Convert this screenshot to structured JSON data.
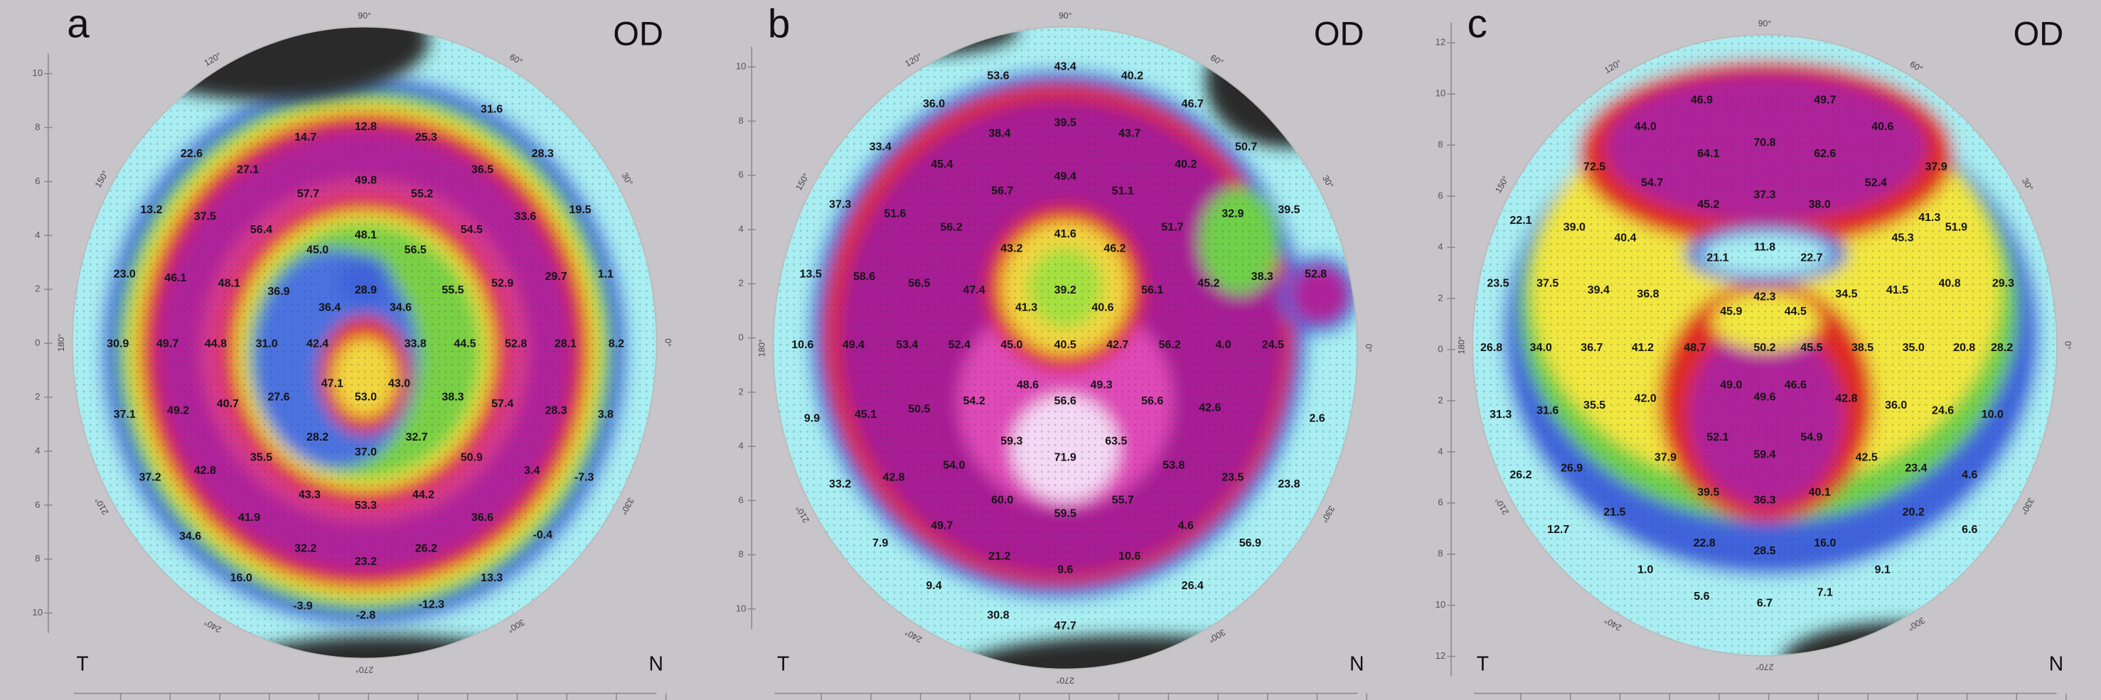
{
  "panels": [
    {
      "label": "a",
      "eye": "OD",
      "temporal": "T",
      "nasal": "N",
      "axis_labels": [
        "10",
        "8",
        "6",
        "4",
        "2",
        "0",
        "2",
        "4",
        "6",
        "8",
        "10"
      ],
      "angle_labels": [
        "90°",
        "120°",
        "60°",
        "150°",
        "30°",
        "180°",
        "0°",
        "210°",
        "330°",
        "240°",
        "300°",
        "270°"
      ],
      "values": [
        "14.7",
        "12.8",
        "25.3",
        "31.6",
        "22.6",
        "27.1",
        "36.5",
        "28.3",
        "13.2",
        "37.5",
        "57.7",
        "49.8",
        "55.2",
        "33.6",
        "19.5",
        "56.4",
        "48.1",
        "56.5",
        "54.5",
        "45.0",
        "23.0",
        "46.1",
        "48.1",
        "36.9",
        "28.9",
        "55.5",
        "52.9",
        "29.7",
        "1.1",
        "36.4",
        "34.6",
        "30.9",
        "49.7",
        "44.8",
        "31.0",
        "42.4",
        "33.8",
        "44.5",
        "52.8",
        "28.1",
        "8.2",
        "47.1",
        "43.0",
        "27.6",
        "40.7",
        "53.0",
        "38.3",
        "57.4",
        "28.3",
        "3.8",
        "37.1",
        "49.2",
        "28.2",
        "32.7",
        "50.9",
        "35.5",
        "37.0",
        "3.4",
        "-7.3",
        "37.2",
        "42.8",
        "43.3",
        "44.2",
        "53.3",
        "41.9",
        "36.6",
        "34.6",
        "-0.4",
        "32.2",
        "26.2",
        "23.2",
        "13.3",
        "16.0",
        "-3.9",
        "-2.8",
        "-12.3"
      ]
    },
    {
      "label": "b",
      "eye": "OD",
      "temporal": "T",
      "nasal": "N",
      "axis_labels": [
        "10",
        "8",
        "6",
        "4",
        "2",
        "0",
        "2",
        "4",
        "6",
        "8",
        "10"
      ],
      "angle_labels": [
        "90°",
        "120°",
        "60°",
        "150°",
        "30°",
        "180°",
        "0°",
        "210°",
        "330°",
        "240°",
        "300°",
        "270°"
      ],
      "values": [
        "53.6",
        "43.4",
        "40.2",
        "36.0",
        "46.7",
        "33.4",
        "38.4",
        "39.5",
        "43.7",
        "50.7",
        "45.4",
        "56.7",
        "49.4",
        "51.1",
        "40.2",
        "37.3",
        "51.6",
        "56.2",
        "43.2",
        "41.6",
        "46.2",
        "51.7",
        "32.9",
        "39.5",
        "13.5",
        "58.6",
        "56.5",
        "47.4",
        "39.2",
        "56.1",
        "45.2",
        "38.3",
        "52.8",
        "41.3",
        "40.6",
        "10.6",
        "49.4",
        "53.4",
        "52.4",
        "45.0",
        "40.5",
        "42.7",
        "56.2",
        "4.0",
        "24.5",
        "54.2",
        "48.6",
        "49.3",
        "56.6",
        "56.6",
        "42.6",
        "9.9",
        "45.1",
        "50.5",
        "2.6",
        "59.3",
        "63.5",
        "71.9",
        "54.0",
        "53.8",
        "42.8",
        "23.5",
        "33.2",
        "23.8",
        "60.0",
        "55.7",
        "59.5",
        "49.7",
        "4.6",
        "21.2",
        "10.6",
        "7.9",
        "56.9",
        "9.6",
        "9.4",
        "26.4",
        "30.8",
        "47.7"
      ]
    },
    {
      "label": "c",
      "eye": "OD",
      "temporal": "T",
      "nasal": "N",
      "axis_labels": [
        "12",
        "10",
        "8",
        "6",
        "4",
        "2",
        "0",
        "2",
        "4",
        "6",
        "8",
        "10",
        "12"
      ],
      "angle_labels": [
        "90°",
        "120°",
        "60°",
        "150°",
        "30°",
        "180°",
        "0°",
        "210°",
        "330°",
        "240°",
        "300°",
        "270°"
      ],
      "values": [
        "46.9",
        "49.7",
        "44.0",
        "70.8",
        "62.6",
        "40.6",
        "64.1",
        "72.5",
        "54.7",
        "52.4",
        "37.9",
        "45.2",
        "37.3",
        "38.0",
        "41.3",
        "22.1",
        "39.0",
        "40.4",
        "45.3",
        "51.9",
        "21.1",
        "11.8",
        "22.7",
        "23.5",
        "37.5",
        "39.4",
        "36.8",
        "42.3",
        "34.5",
        "41.5",
        "40.8",
        "29.3",
        "45.9",
        "44.5",
        "26.8",
        "34.0",
        "36.7",
        "41.2",
        "48.7",
        "50.2",
        "45.5",
        "38.5",
        "35.0",
        "20.8",
        "28.2",
        "49.0",
        "46.6",
        "31.3",
        "31.6",
        "35.5",
        "42.0",
        "49.6",
        "42.8",
        "36.0",
        "24.6",
        "10.0",
        "52.1",
        "54.9",
        "37.9",
        "42.5",
        "59.4",
        "26.2",
        "26.9",
        "23.4",
        "4.6",
        "39.5",
        "36.3",
        "40.1",
        "21.5",
        "20.2",
        "12.7",
        "6.6",
        "22.8",
        "28.5",
        "16.0",
        "1.0",
        "9.1",
        "5.6",
        "6.7",
        "7.1"
      ]
    }
  ]
}
